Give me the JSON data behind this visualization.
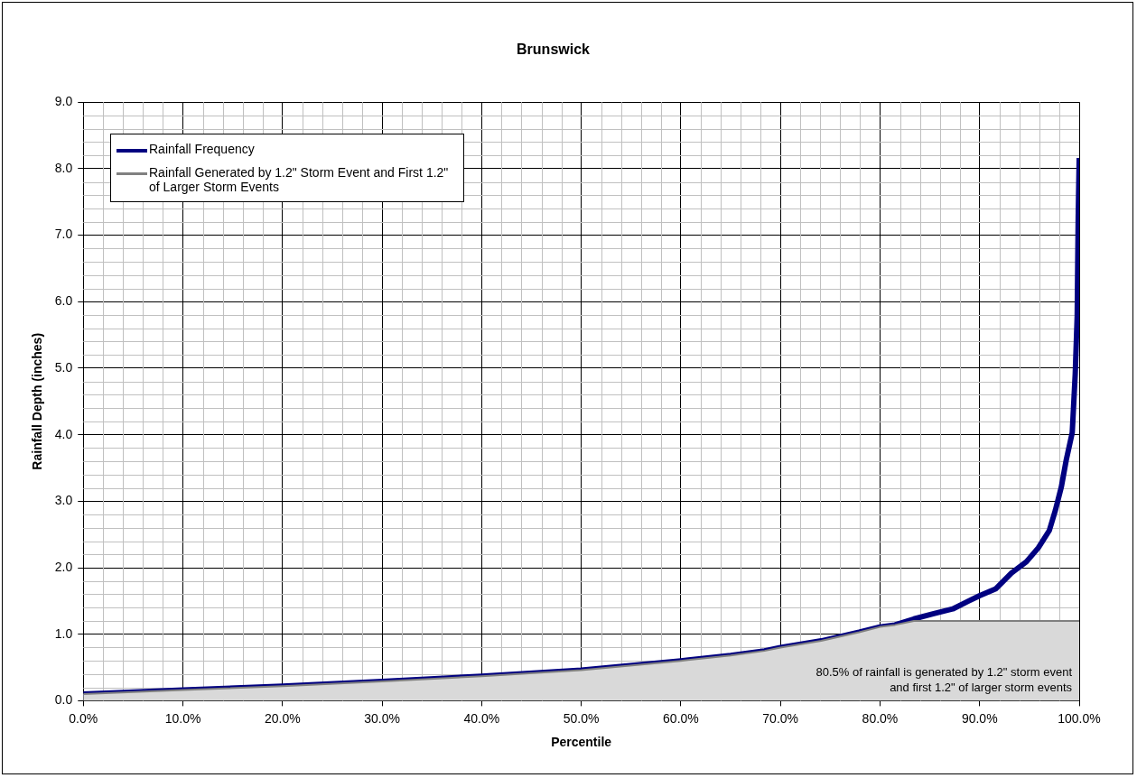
{
  "chart_data": {
    "type": "line",
    "title": "Brunswick",
    "xlabel": "Percentile",
    "ylabel": "Rainfall Depth (inches)",
    "series": [
      {
        "name": "Rainfall Frequency",
        "color": "#000080",
        "x": [
          0,
          10,
          20,
          30,
          40,
          50,
          60,
          65,
          68.4,
          70,
          74.1,
          77.9,
          80,
          81.5,
          83.4,
          85.4,
          87.3,
          88.9,
          90,
          91.6,
          93.2,
          94.7,
          95.9,
          97.0,
          97.6,
          98.2,
          98.7,
          99.3,
          99.6,
          99.8,
          99.9,
          100
        ],
        "values": [
          0.1,
          0.16,
          0.22,
          0.29,
          0.37,
          0.46,
          0.6,
          0.68,
          0.75,
          0.8,
          0.9,
          1.03,
          1.11,
          1.14,
          1.23,
          1.31,
          1.38,
          1.5,
          1.58,
          1.68,
          1.92,
          2.09,
          2.3,
          2.56,
          2.86,
          3.21,
          3.62,
          4.03,
          4.91,
          5.79,
          7.26,
          8.16
        ]
      },
      {
        "name": "Rainfall Generated by 1.2\" Storm Event and First 1.2\" of Larger Storm Events",
        "type": "area",
        "color": "#808080",
        "x": [
          0,
          10,
          20,
          30,
          40,
          50,
          60,
          65,
          68.4,
          70,
          74.1,
          77.9,
          80,
          81.5,
          83.4,
          100
        ],
        "values": [
          0.1,
          0.16,
          0.22,
          0.29,
          0.37,
          0.46,
          0.6,
          0.68,
          0.75,
          0.8,
          0.9,
          1.03,
          1.11,
          1.14,
          1.2,
          1.2
        ]
      }
    ],
    "xlim": [
      0,
      100
    ],
    "xticks": [
      {
        "value": 0,
        "label": "0.0%"
      },
      {
        "value": 10,
        "label": "10.0%"
      },
      {
        "value": 20,
        "label": "20.0%"
      },
      {
        "value": 30,
        "label": "30.0%"
      },
      {
        "value": 40,
        "label": "40.0%"
      },
      {
        "value": 50,
        "label": "50.0%"
      },
      {
        "value": 60,
        "label": "60.0%"
      },
      {
        "value": 70,
        "label": "70.0%"
      },
      {
        "value": 80,
        "label": "80.0%"
      },
      {
        "value": 90,
        "label": "90.0%"
      },
      {
        "value": 100,
        "label": "100.0%"
      }
    ],
    "ylim": [
      0,
      9
    ],
    "yticks": [
      {
        "value": 0,
        "label": "0.0"
      },
      {
        "value": 1,
        "label": "1.0"
      },
      {
        "value": 2,
        "label": "2.0"
      },
      {
        "value": 3,
        "label": "3.0"
      },
      {
        "value": 4,
        "label": "4.0"
      },
      {
        "value": 5,
        "label": "5.0"
      },
      {
        "value": 6,
        "label": "6.0"
      },
      {
        "value": 7,
        "label": "7.0"
      },
      {
        "value": 8,
        "label": "8.0"
      },
      {
        "value": 9,
        "label": "9.0"
      }
    ],
    "grid": true,
    "legend": "top left",
    "marker": "none",
    "line_style": "solid",
    "annotations": [
      "80.5% of rainfall is generated by 1.2\" storm event and first 1.2\" of larger storm events"
    ]
  }
}
